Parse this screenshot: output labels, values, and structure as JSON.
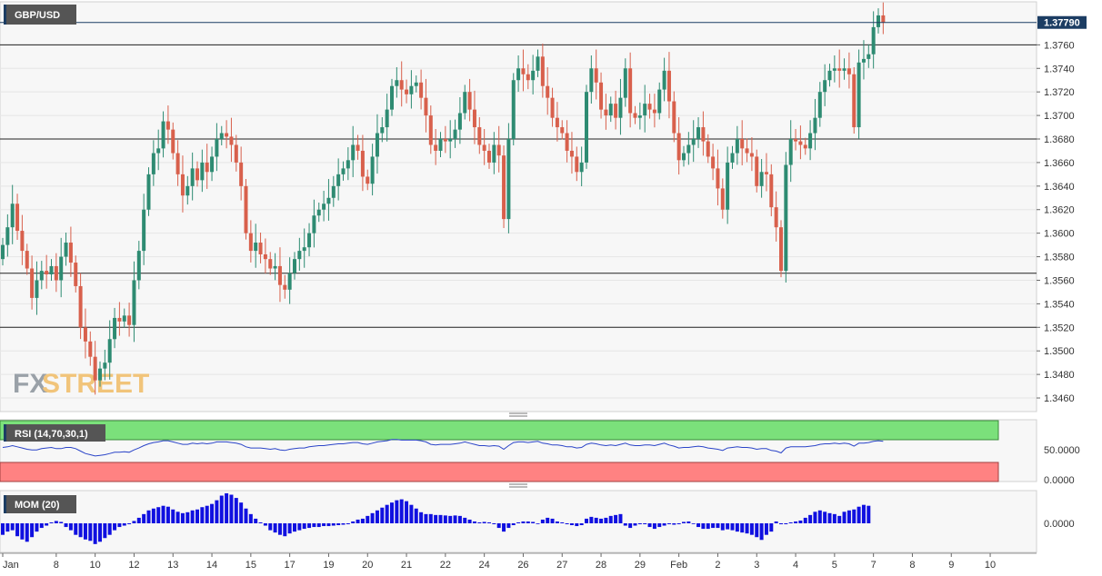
{
  "chart_data": [
    {
      "type": "candlestick",
      "symbol": "GBP/USD",
      "last_price": "1.37790",
      "watermark": {
        "part1": "FX",
        "part2": "STREET"
      },
      "y_ticks": [
        "1.3760",
        "1.3740",
        "1.3720",
        "1.3700",
        "1.3680",
        "1.3660",
        "1.3640",
        "1.3620",
        "1.3600",
        "1.3580",
        "1.3560",
        "1.3540",
        "1.3520",
        "1.3500",
        "1.3480",
        "1.3460"
      ],
      "ylim": [
        1.345,
        1.3795
      ],
      "x_ticks": [
        {
          "label": "Jan",
          "bar": 0
        },
        {
          "label": "8",
          "bar": 11
        },
        {
          "label": "10",
          "bar": 19
        },
        {
          "label": "12",
          "bar": 27
        },
        {
          "label": "13",
          "bar": 35
        },
        {
          "label": "14",
          "bar": 43
        },
        {
          "label": "15",
          "bar": 51
        },
        {
          "label": "17",
          "bar": 59
        },
        {
          "label": "19",
          "bar": 67
        },
        {
          "label": "20",
          "bar": 75
        },
        {
          "label": "21",
          "bar": 83
        },
        {
          "label": "22",
          "bar": 91
        },
        {
          "label": "24",
          "bar": 99
        },
        {
          "label": "26",
          "bar": 107
        },
        {
          "label": "27",
          "bar": 115
        },
        {
          "label": "28",
          "bar": 123
        },
        {
          "label": "29",
          "bar": 131
        },
        {
          "label": "Feb",
          "bar": 139
        },
        {
          "label": "2",
          "bar": 147
        },
        {
          "label": "3",
          "bar": 155
        },
        {
          "label": "4",
          "bar": 163
        },
        {
          "label": "5",
          "bar": 171
        },
        {
          "label": "7",
          "bar": 179
        },
        {
          "label": "8",
          "bar": 187
        },
        {
          "label": "9",
          "bar": 195
        },
        {
          "label": "10",
          "bar": 203
        }
      ],
      "horizontal_levels": [
        1.376,
        1.368,
        1.3566,
        1.352
      ],
      "close": [
        1.359,
        1.3605,
        1.3625,
        1.3602,
        1.3585,
        1.357,
        1.3545,
        1.356,
        1.3568,
        1.3565,
        1.3572,
        1.356,
        1.358,
        1.3592,
        1.3575,
        1.3555,
        1.352,
        1.3508,
        1.3495,
        1.3475,
        1.3485,
        1.349,
        1.351,
        1.3528,
        1.3525,
        1.353,
        1.3522,
        1.356,
        1.3585,
        1.362,
        1.365,
        1.3668,
        1.3672,
        1.3695,
        1.3688,
        1.3668,
        1.365,
        1.3632,
        1.364,
        1.3655,
        1.3645,
        1.366,
        1.3652,
        1.3665,
        1.368,
        1.3685,
        1.3682,
        1.3675,
        1.366,
        1.364,
        1.36,
        1.3585,
        1.3592,
        1.3582,
        1.3578,
        1.357,
        1.3572,
        1.3556,
        1.3552,
        1.3566,
        1.3578,
        1.3585,
        1.3588,
        1.36,
        1.3615,
        1.362,
        1.3625,
        1.363,
        1.364,
        1.365,
        1.3655,
        1.3662,
        1.3675,
        1.367,
        1.3648,
        1.3642,
        1.3665,
        1.3685,
        1.369,
        1.3705,
        1.3725,
        1.373,
        1.3722,
        1.3718,
        1.3725,
        1.3728,
        1.3715,
        1.37,
        1.3675,
        1.367,
        1.368,
        1.3678,
        1.368,
        1.3688,
        1.3702,
        1.372,
        1.3705,
        1.369,
        1.3675,
        1.367,
        1.366,
        1.3675,
        1.3666,
        1.3612,
        1.368,
        1.373,
        1.374,
        1.3735,
        1.373,
        1.3738,
        1.375,
        1.3725,
        1.3715,
        1.3698,
        1.369,
        1.3685,
        1.367,
        1.3665,
        1.3652,
        1.366,
        1.372,
        1.374,
        1.3728,
        1.3705,
        1.37,
        1.371,
        1.3698,
        1.3715,
        1.374,
        1.3702,
        1.3698,
        1.37,
        1.371,
        1.3705,
        1.3702,
        1.3722,
        1.3738,
        1.3712,
        1.3685,
        1.3662,
        1.3668,
        1.3675,
        1.368,
        1.369,
        1.3678,
        1.3665,
        1.3655,
        1.3638,
        1.362,
        1.366,
        1.3668,
        1.368,
        1.3672,
        1.3668,
        1.3665,
        1.364,
        1.3652,
        1.365,
        1.3622,
        1.3605,
        1.3568,
        1.3658,
        1.368,
        1.3678,
        1.3675,
        1.3672,
        1.3685,
        1.3698,
        1.372,
        1.373,
        1.3738,
        1.374,
        1.3738,
        1.374,
        1.3735,
        1.369,
        1.3745,
        1.3748,
        1.3752,
        1.3775,
        1.3785,
        1.3779
      ],
      "rsi": {
        "label": "RSI (14,70,30,1)",
        "levels": [
          30,
          70
        ],
        "tick_labels": [
          "50.0000",
          "0.0000"
        ],
        "values": [
          56,
          57,
          59,
          57,
          55,
          53,
          52,
          52,
          54,
          55,
          56,
          54,
          54,
          56,
          56,
          54,
          50,
          46,
          44,
          42,
          43,
          44,
          46,
          48,
          48,
          49,
          48,
          52,
          55,
          59,
          62,
          64,
          65,
          67,
          67,
          65,
          63,
          61,
          61,
          63,
          62,
          63,
          62,
          63,
          65,
          65,
          65,
          64,
          63,
          61,
          57,
          55,
          55,
          55,
          54,
          53,
          54,
          52,
          51,
          53,
          54,
          55,
          55,
          57,
          58,
          59,
          59,
          60,
          61,
          62,
          62,
          63,
          64,
          64,
          62,
          61,
          63,
          65,
          66,
          67,
          69,
          69,
          68,
          68,
          68,
          68,
          67,
          65,
          61,
          60,
          61,
          61,
          61,
          62,
          63,
          65,
          63,
          61,
          59,
          59,
          58,
          59,
          58,
          53,
          59,
          64,
          65,
          65,
          64,
          65,
          66,
          63,
          62,
          60,
          60,
          59,
          57,
          57,
          55,
          56,
          61,
          63,
          62,
          60,
          59,
          60,
          59,
          61,
          63,
          60,
          59,
          59,
          60,
          60,
          59,
          61,
          63,
          60,
          58,
          55,
          56,
          56,
          57,
          58,
          57,
          55,
          54,
          53,
          51,
          55,
          56,
          57,
          56,
          56,
          55,
          53,
          54,
          54,
          51,
          50,
          47,
          55,
          57,
          57,
          57,
          57,
          58,
          59,
          61,
          62,
          62,
          63,
          62,
          63,
          62,
          58,
          63,
          63,
          64,
          66,
          67,
          66
        ]
      },
      "mom": {
        "label": "MOM (20)",
        "tick_labels": [
          "0.0000"
        ],
        "values": [
          -0.0025,
          -0.0018,
          -0.0015,
          -0.0028,
          -0.0035,
          -0.004,
          -0.003,
          -0.0018,
          -0.001,
          -0.0005,
          0.0002,
          0.0005,
          0.0003,
          -0.0008,
          -0.0015,
          -0.0025,
          -0.003,
          -0.0035,
          -0.0038,
          -0.0045,
          -0.004,
          -0.0032,
          -0.0025,
          -0.0015,
          -0.0008,
          -0.0005,
          -0.0002,
          0.0005,
          0.0012,
          0.002,
          0.0028,
          0.0032,
          0.0035,
          0.0038,
          0.0036,
          0.003,
          0.0025,
          0.0022,
          0.0024,
          0.0028,
          0.003,
          0.0035,
          0.0038,
          0.0042,
          0.005,
          0.006,
          0.0065,
          0.0062,
          0.0055,
          0.0045,
          0.0032,
          0.002,
          0.001,
          0.0002,
          -0.0005,
          -0.0015,
          -0.002,
          -0.0025,
          -0.0028,
          -0.0022,
          -0.0018,
          -0.0015,
          -0.0012,
          -0.001,
          -0.0008,
          -0.0008,
          -0.0006,
          -0.0006,
          -0.0005,
          -0.0004,
          -0.0003,
          -0.0002,
          0.0004,
          0.0008,
          0.001,
          0.0016,
          0.0022,
          0.0028,
          0.0034,
          0.004,
          0.0045,
          0.005,
          0.0052,
          0.0048,
          0.004,
          0.0032,
          0.0024,
          0.002,
          0.002,
          0.0018,
          0.0018,
          0.0017,
          0.0016,
          0.0017,
          0.0016,
          0.0012,
          0.0008,
          0.0004,
          0.0002,
          0.0003,
          0.0002,
          -0.0002,
          -0.001,
          -0.0018,
          -0.001,
          -0.0004,
          0.0002,
          0.0004,
          0.0004,
          0.0003,
          0.0,
          0.0008,
          0.0012,
          0.001,
          0.0004,
          0.0002,
          -0.0002,
          -0.0004,
          -0.0006,
          -0.0004,
          0.001,
          0.0014,
          0.0012,
          0.001,
          0.0012,
          0.0016,
          0.0018,
          0.002,
          -0.0005,
          -0.001,
          -0.0005,
          -0.0002,
          -0.0002,
          -0.0008,
          -0.0012,
          -0.0008,
          -0.0005,
          -0.0002,
          -0.0003,
          -0.0002,
          0.0003,
          0.0004,
          0.0,
          -0.0008,
          -0.0012,
          -0.0012,
          -0.001,
          -0.001,
          -0.0015,
          -0.0013,
          -0.0015,
          -0.0018,
          -0.002,
          -0.0022,
          -0.0025,
          -0.003,
          -0.0036,
          -0.0025,
          -0.0018,
          0.0004,
          -0.0002,
          -0.0002,
          0.0002,
          0.0004,
          0.0006,
          0.0012,
          0.0018,
          0.0025,
          0.0028,
          0.0025,
          0.0022,
          0.002,
          0.0016,
          0.0025,
          0.0028,
          0.003,
          0.0036,
          0.004,
          0.0038
        ]
      }
    }
  ]
}
